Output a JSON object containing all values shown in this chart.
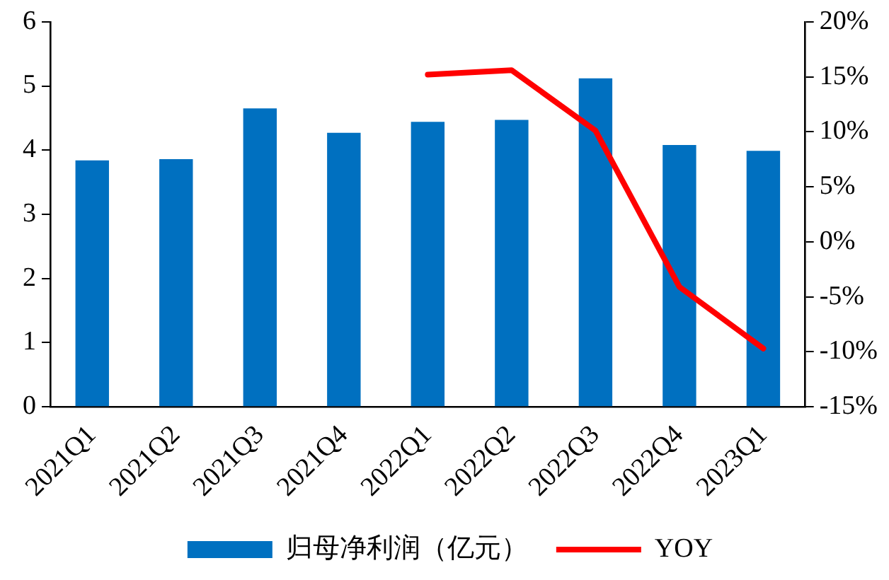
{
  "chart_data": {
    "type": "bar",
    "categories": [
      "2021Q1",
      "2021Q2",
      "2021Q3",
      "2021Q4",
      "2022Q1",
      "2022Q2",
      "2022Q3",
      "2022Q4",
      "2023Q1"
    ],
    "series": [
      {
        "name": "归母净利润（亿元）",
        "color": "#0070c0",
        "values": [
          3.84,
          3.86,
          4.65,
          4.27,
          4.44,
          4.47,
          5.12,
          4.08,
          3.99
        ]
      },
      {
        "name": "YOY",
        "type": "line",
        "axis": "y2",
        "color": "#ff0000",
        "values": [
          null,
          null,
          null,
          null,
          15.2,
          15.6,
          10.1,
          -4.1,
          -9.7
        ]
      }
    ],
    "ylim": [
      0,
      6
    ],
    "yticks": [
      0,
      1,
      2,
      3,
      4,
      5,
      6
    ],
    "y2lim": [
      -15,
      20
    ],
    "y2ticks": [
      {
        "value": -15,
        "label": "-15%"
      },
      {
        "value": -10,
        "label": "-10%"
      },
      {
        "value": -5,
        "label": "-5%"
      },
      {
        "value": 0,
        "label": "0%"
      },
      {
        "value": 5,
        "label": "5%"
      },
      {
        "value": 10,
        "label": "10%"
      },
      {
        "value": 15,
        "label": "15%"
      },
      {
        "value": 20,
        "label": "20%"
      }
    ],
    "grid": false,
    "legend": "bottom",
    "marker": "none",
    "line_style": "solid"
  }
}
